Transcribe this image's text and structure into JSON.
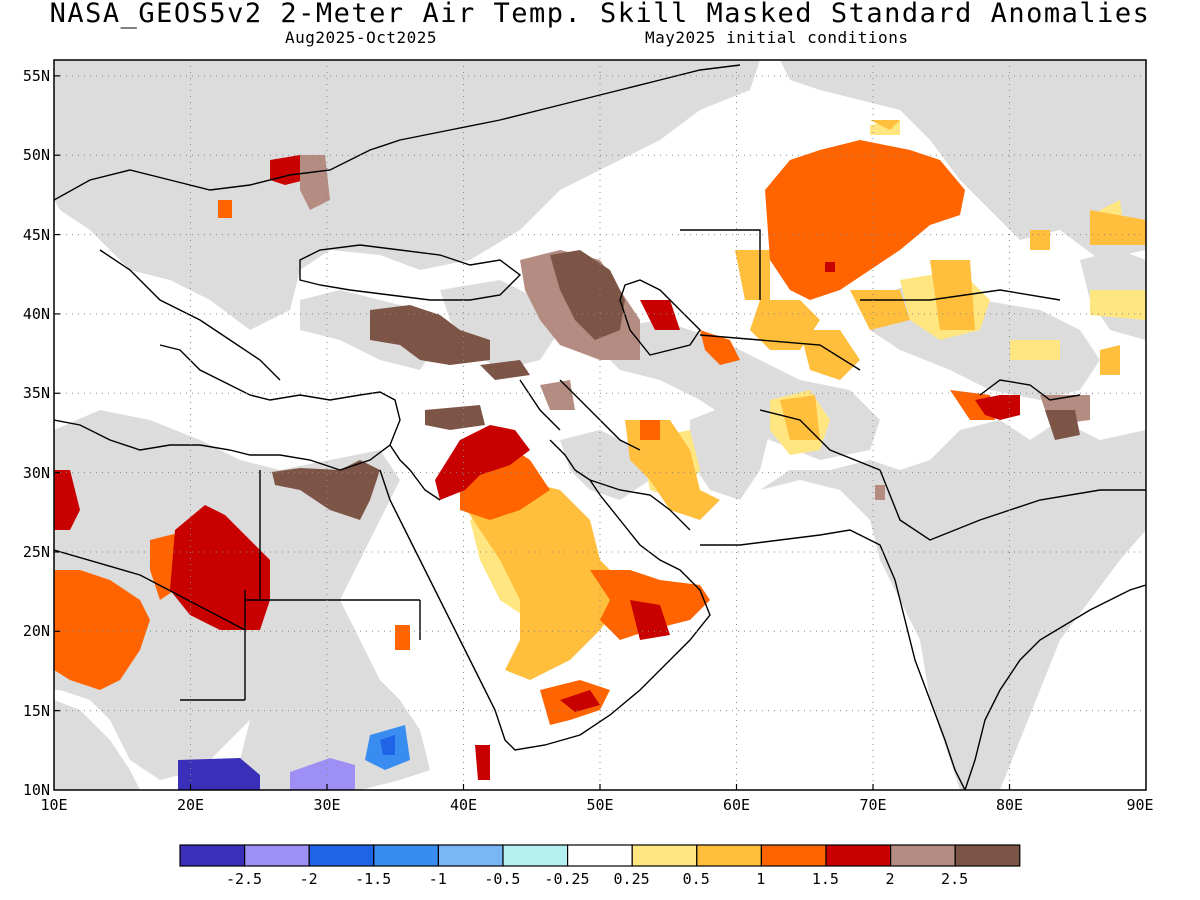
{
  "header": {
    "title": "NASA_GEOS5v2 2-Meter Air Temp. Skill Masked Standard Anomalies",
    "period": "Aug2025-Oct2025",
    "init": "May2025 initial conditions"
  },
  "map": {
    "lat_labels": [
      "55N",
      "50N",
      "45N",
      "40N",
      "35N",
      "30N",
      "25N",
      "20N",
      "15N",
      "10N"
    ],
    "lon_labels": [
      "10E",
      "20E",
      "30E",
      "40E",
      "50E",
      "60E",
      "70E",
      "80E",
      "90E"
    ],
    "extent": {
      "lon": [
        10,
        90
      ],
      "lat": [
        10,
        56
      ]
    },
    "grid": "dotted",
    "colors": {
      "no_skill": "#dcdcdc",
      "land_line": "#000000"
    }
  },
  "colorbar": {
    "colors": [
      "#3a2fb8",
      "#9e8ff5",
      "#1f64e6",
      "#3a8df0",
      "#78b6f5",
      "#b4f0f0",
      "#ffffff",
      "#ffe680",
      "#ffbe3c",
      "#ff6400",
      "#c80000",
      "#b48c82",
      "#7d5546"
    ],
    "labels": [
      "-2.5",
      "-2",
      "-1.5",
      "-1",
      "-0.5",
      "-0.25",
      "0.25",
      "0.5",
      "1",
      "1.5",
      "2",
      "2.5"
    ]
  }
}
